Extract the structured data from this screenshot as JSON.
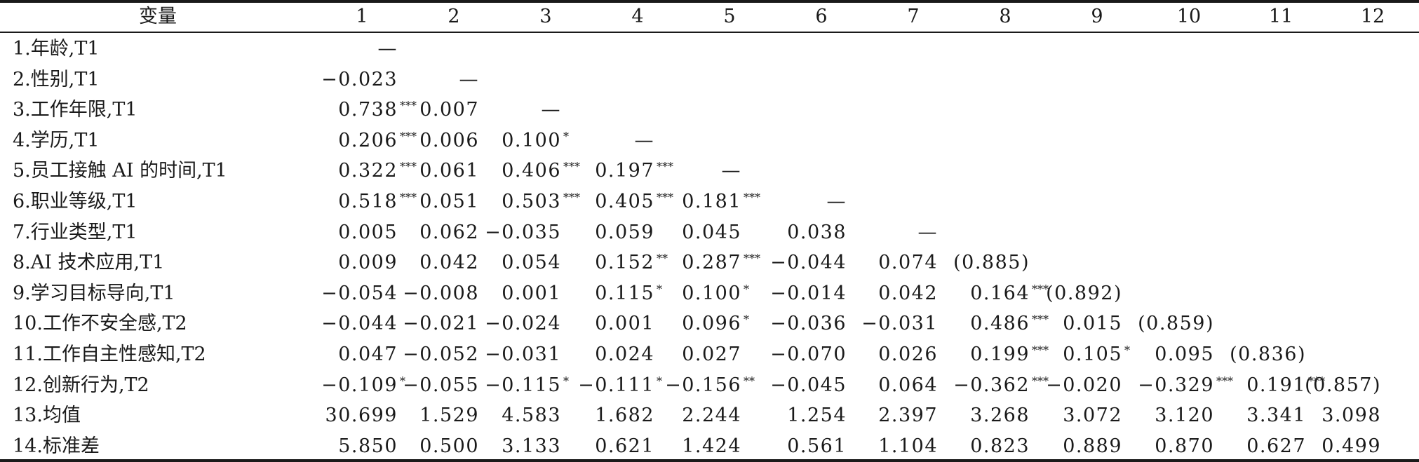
{
  "header": {
    "variable": "变量",
    "columns": [
      "1",
      "2",
      "3",
      "4",
      "5",
      "6",
      "7",
      "8",
      "9",
      "10",
      "11",
      "12"
    ]
  },
  "rows": [
    {
      "label": "1.年龄,T1",
      "cells": [
        [
          "—",
          ""
        ]
      ]
    },
    {
      "label": "2.性别,T1",
      "cells": [
        [
          "−0.023",
          ""
        ],
        [
          "—",
          ""
        ]
      ]
    },
    {
      "label": "3.工作年限,T1",
      "cells": [
        [
          "0.738",
          "***"
        ],
        [
          "0.007",
          ""
        ],
        [
          "—",
          ""
        ]
      ]
    },
    {
      "label": "4.学历,T1",
      "cells": [
        [
          "0.206",
          "***"
        ],
        [
          "0.006",
          ""
        ],
        [
          "0.100",
          "*"
        ],
        [
          "—",
          ""
        ]
      ]
    },
    {
      "label": "5.员工接触 AI 的时间,T1",
      "cells": [
        [
          "0.322",
          "***"
        ],
        [
          "0.061",
          ""
        ],
        [
          "0.406",
          "***"
        ],
        [
          "0.197",
          "***"
        ],
        [
          "—",
          ""
        ]
      ]
    },
    {
      "label": "6.职业等级,T1",
      "cells": [
        [
          "0.518",
          "***"
        ],
        [
          "0.051",
          ""
        ],
        [
          "0.503",
          "***"
        ],
        [
          "0.405",
          "***"
        ],
        [
          "0.181",
          "***"
        ],
        [
          "—",
          ""
        ]
      ]
    },
    {
      "label": "7.行业类型,T1",
      "cells": [
        [
          "0.005",
          ""
        ],
        [
          "0.062",
          ""
        ],
        [
          "−0.035",
          ""
        ],
        [
          "0.059",
          ""
        ],
        [
          "0.045",
          ""
        ],
        [
          "0.038",
          ""
        ],
        [
          "—",
          ""
        ]
      ]
    },
    {
      "label": "8.AI 技术应用,T1",
      "cells": [
        [
          "0.009",
          ""
        ],
        [
          "0.042",
          ""
        ],
        [
          "0.054",
          ""
        ],
        [
          "0.152",
          "**"
        ],
        [
          "0.287",
          "***"
        ],
        [
          "−0.044",
          ""
        ],
        [
          "0.074",
          ""
        ],
        [
          "(0.885)",
          ""
        ]
      ]
    },
    {
      "label": "9.学习目标导向,T1",
      "cells": [
        [
          "−0.054",
          ""
        ],
        [
          "−0.008",
          ""
        ],
        [
          "0.001",
          ""
        ],
        [
          "0.115",
          "*"
        ],
        [
          "0.100",
          "*"
        ],
        [
          "−0.014",
          ""
        ],
        [
          "0.042",
          ""
        ],
        [
          "0.164",
          "***"
        ],
        [
          "(0.892)",
          ""
        ]
      ]
    },
    {
      "label": "10.工作不安全感,T2",
      "cells": [
        [
          "−0.044",
          ""
        ],
        [
          "−0.021",
          ""
        ],
        [
          "−0.024",
          ""
        ],
        [
          "0.001",
          ""
        ],
        [
          "0.096",
          "*"
        ],
        [
          "−0.036",
          ""
        ],
        [
          "−0.031",
          ""
        ],
        [
          "0.486",
          "***"
        ],
        [
          "0.015",
          ""
        ],
        [
          "(0.859)",
          ""
        ]
      ]
    },
    {
      "label": "11.工作自主性感知,T2",
      "cells": [
        [
          "0.047",
          ""
        ],
        [
          "−0.052",
          ""
        ],
        [
          "−0.031",
          ""
        ],
        [
          "0.024",
          ""
        ],
        [
          "0.027",
          ""
        ],
        [
          "−0.070",
          ""
        ],
        [
          "0.026",
          ""
        ],
        [
          "0.199",
          "***"
        ],
        [
          "0.105",
          "*"
        ],
        [
          "0.095",
          ""
        ],
        [
          "(0.836)",
          ""
        ]
      ]
    },
    {
      "label": "12.创新行为,T2",
      "cells": [
        [
          "−0.109",
          "*"
        ],
        [
          "−0.055",
          ""
        ],
        [
          "−0.115",
          "*"
        ],
        [
          "−0.111",
          "*"
        ],
        [
          "−0.156",
          "**"
        ],
        [
          "−0.045",
          ""
        ],
        [
          "0.064",
          ""
        ],
        [
          "−0.362",
          "***"
        ],
        [
          "−0.020",
          ""
        ],
        [
          "−0.329",
          "***"
        ],
        [
          "0.191",
          "***"
        ],
        [
          "(0.857)",
          ""
        ]
      ]
    },
    {
      "label": "13.均值",
      "cells": [
        [
          "30.699",
          ""
        ],
        [
          "1.529",
          ""
        ],
        [
          "4.583",
          ""
        ],
        [
          "1.682",
          ""
        ],
        [
          "2.244",
          ""
        ],
        [
          "1.254",
          ""
        ],
        [
          "2.397",
          ""
        ],
        [
          "3.268",
          ""
        ],
        [
          "3.072",
          ""
        ],
        [
          "3.120",
          ""
        ],
        [
          "3.341",
          ""
        ],
        [
          "3.098",
          ""
        ]
      ]
    },
    {
      "label": "14.标准差",
      "cells": [
        [
          "5.850",
          ""
        ],
        [
          "0.500",
          ""
        ],
        [
          "3.133",
          ""
        ],
        [
          "0.621",
          ""
        ],
        [
          "1.424",
          ""
        ],
        [
          "0.561",
          ""
        ],
        [
          "1.104",
          ""
        ],
        [
          "0.823",
          ""
        ],
        [
          "0.889",
          ""
        ],
        [
          "0.870",
          ""
        ],
        [
          "0.627",
          ""
        ],
        [
          "0.499",
          ""
        ]
      ]
    }
  ]
}
